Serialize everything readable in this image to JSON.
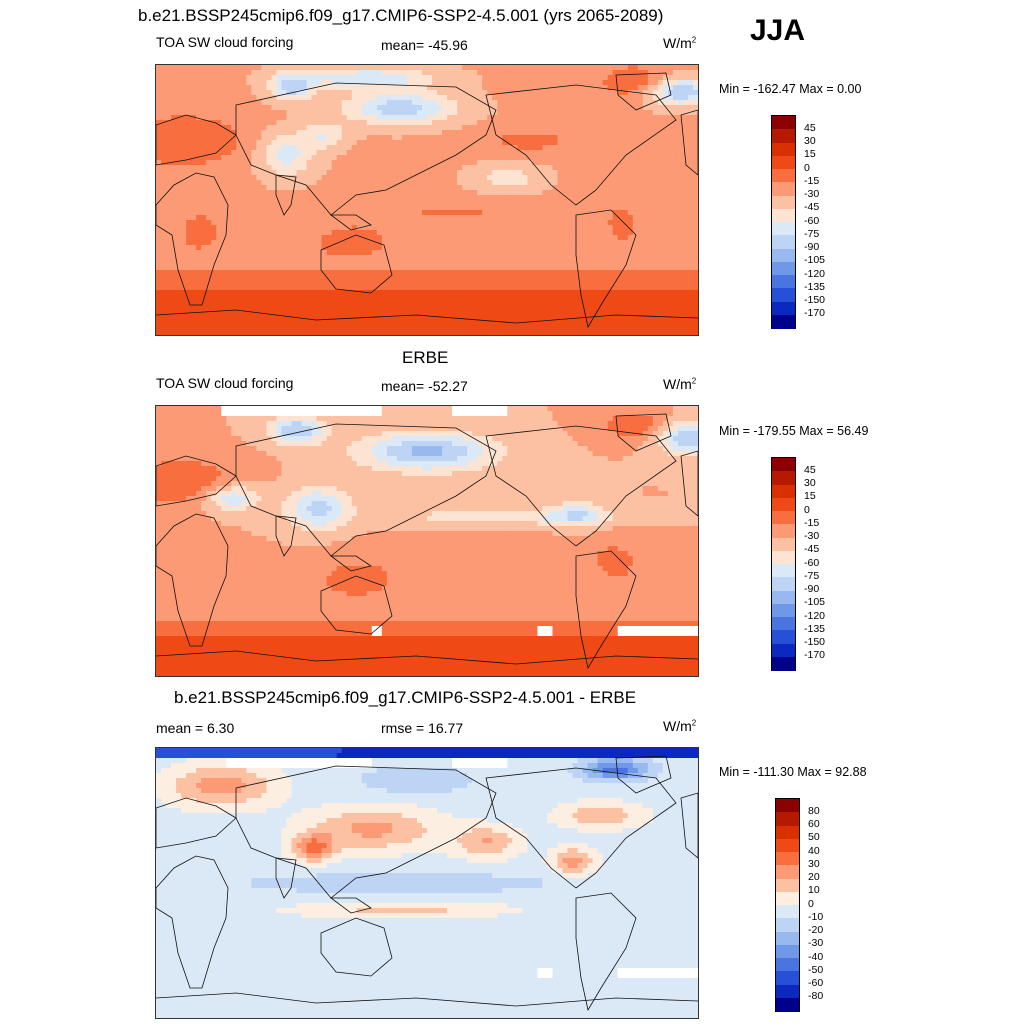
{
  "header": {
    "title": "b.e21.BSSP245cmip6.f09_g17.CMIP6-SSP2-4.5.001 (yrs 2065-2089)",
    "season": "JJA"
  },
  "panels": [
    {
      "id": "model",
      "title": "",
      "left_label": "TOA SW cloud forcing",
      "center_label": "mean= -45.96",
      "units_base": "W/m",
      "units_exp": "2",
      "minmax": "Min = -162.47 Max =   0.00",
      "field": "model"
    },
    {
      "id": "obs",
      "title": "ERBE",
      "left_label": "TOA SW cloud forcing",
      "center_label": "mean= -52.27",
      "units_base": "W/m",
      "units_exp": "2",
      "minmax": "Min = -179.55 Max =  56.49",
      "field": "obs"
    },
    {
      "id": "diff",
      "title": "b.e21.BSSP245cmip6.f09_g17.CMIP6-SSP2-4.5.001 - ERBE",
      "left_label": "mean =   6.30",
      "center_label": "rmse =  16.77",
      "units_base": "W/m",
      "units_exp": "2",
      "minmax": "Min = -111.30 Max =  92.88",
      "field": "diff"
    }
  ],
  "colorbars": {
    "abs": {
      "labels": [
        "45",
        "30",
        "15",
        "0",
        "-15",
        "-30",
        "-45",
        "-60",
        "-75",
        "-90",
        "-105",
        "-120",
        "-135",
        "-150",
        "-170"
      ],
      "colors": [
        "#8b0000",
        "#b51a00",
        "#d93000",
        "#ef4a15",
        "#f96e3e",
        "#fb9a74",
        "#fcc0a2",
        "#fde4d2",
        "#dbe9f7",
        "#bdd4f4",
        "#98b8f0",
        "#6f98e8",
        "#4a75e0",
        "#2650d8",
        "#0b28c0",
        "#00008b"
      ]
    },
    "diff": {
      "labels": [
        "80",
        "60",
        "50",
        "40",
        "30",
        "20",
        "10",
        "0",
        "-10",
        "-20",
        "-30",
        "-40",
        "-50",
        "-60",
        "-80"
      ],
      "colors": [
        "#8b0000",
        "#b51a00",
        "#d93000",
        "#ef4a15",
        "#f96e3e",
        "#fb9a74",
        "#fcc0a2",
        "#fdeee2",
        "#dbe9f7",
        "#bdd4f4",
        "#98b8f0",
        "#6f98e8",
        "#4a75e0",
        "#2650d8",
        "#0b28c0",
        "#00008b"
      ]
    }
  }
}
